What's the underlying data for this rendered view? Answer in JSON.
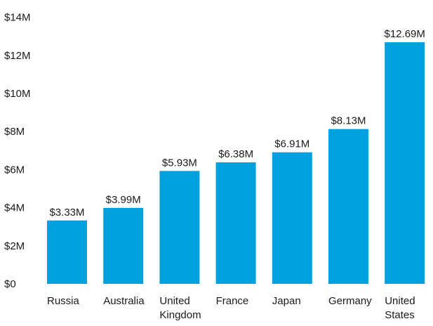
{
  "chart_data": {
    "type": "bar",
    "categories": [
      [
        "Russia"
      ],
      [
        "Australia"
      ],
      [
        "United",
        "Kingdom"
      ],
      [
        "France"
      ],
      [
        "Japan"
      ],
      [
        "Germany"
      ],
      [
        "United",
        "States"
      ]
    ],
    "values": [
      3.33,
      3.99,
      5.93,
      6.38,
      6.91,
      8.13,
      12.69
    ],
    "data_labels": [
      "$3.33M",
      "$3.99M",
      "$5.93M",
      "$6.38M",
      "$6.91M",
      "$8.13M",
      "$12.69M"
    ],
    "y_ticks": [
      0,
      2,
      4,
      6,
      8,
      10,
      12,
      14
    ],
    "y_tick_labels": [
      "$0",
      "$2M",
      "$4M",
      "$6M",
      "$8M",
      "$10M",
      "$12M",
      "$14M"
    ],
    "ylim": [
      0,
      14
    ],
    "grid": false,
    "legend": false,
    "bar_color": "#00a1de",
    "text_color": "#1a1a1a"
  }
}
